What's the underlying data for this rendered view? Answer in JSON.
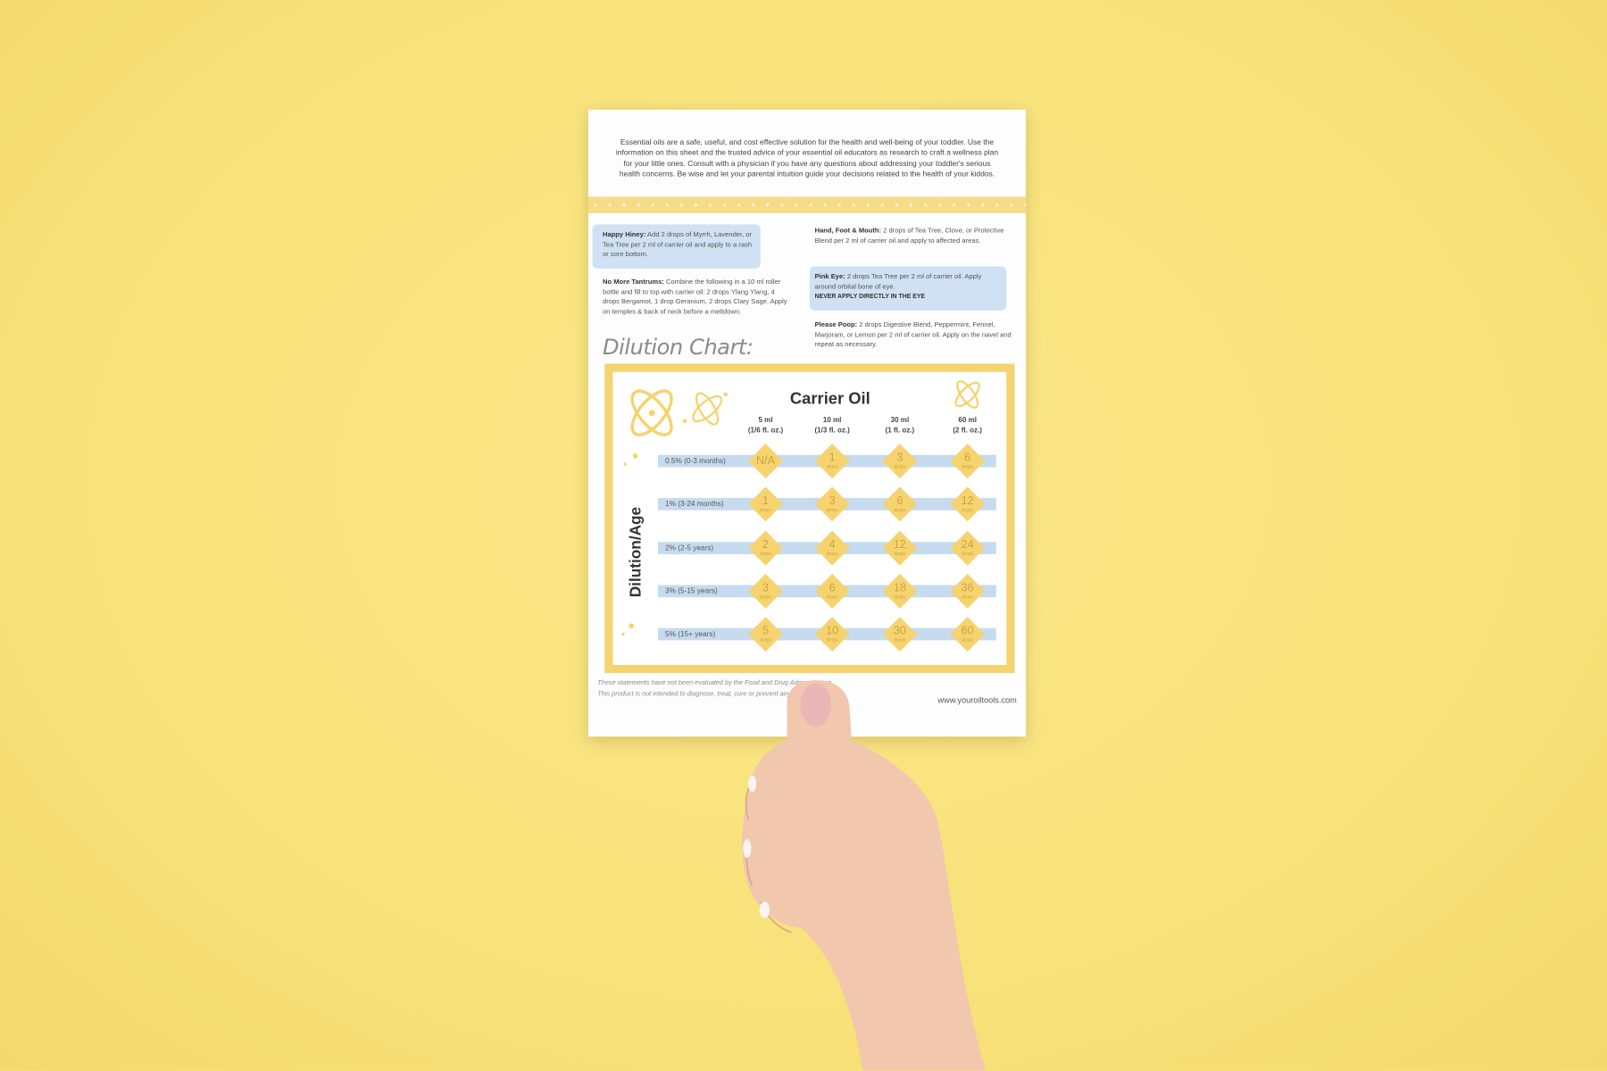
{
  "intro": "Essential oils are a safe, useful, and cost effective solution for the health and well-being of your toddler. Use the information on this sheet and the trusted advice of your essential oil educators as research to craft a wellness plan for your little ones. Consult with a physician if you have any questions about addressing your toddler's serious health concerns. Be wise and let your parental intuition guide your decisions related to the health of your kiddos.",
  "remedies": [
    {
      "name": "Happy Hiney:",
      "text": "Add 2 drops of Myrrh, Lavender, or Tea Tree per 2 ml of carrier oil and apply to a rash or sore bottom."
    },
    {
      "name": "No More Tantrums:",
      "text": "Combine the following in a 10 ml roller bottle and fill to top with carrier oil: 2 drops Ylang Ylang, 4 drops Bergamot, 1 drop Geranium, 2 drops Clary Sage. Apply on temples & back of neck before a meltdown."
    },
    {
      "name": "Hand, Foot & Mouth:",
      "text": "2 drops of Tea Tree, Clove, or Protective Blend per 2 ml of carrier oil and apply to affected areas."
    },
    {
      "name": "Pink Eye:",
      "text": "2 drops Tea Tree per 2 ml of carrier oil. Apply around orbital bone of eye.",
      "warning": "NEVER APPLY DIRECTLY IN THE EYE"
    },
    {
      "name": "Please Poop:",
      "text": "2 drops Digestive Blend, Peppermint, Fennel, Marjoram, or Lemon per 2 ml of carrier oil. Apply on the navel and repeat as necessary."
    }
  ],
  "dilution": {
    "title": "Dilution Chart:",
    "column_heading": "Carrier Oil",
    "row_heading": "Dilution/Age",
    "unit": "drops",
    "columns": [
      {
        "volume": "5 ml",
        "conversion": "(1/6 fl. oz.)"
      },
      {
        "volume": "10 ml",
        "conversion": "(1/3 fl. oz.)"
      },
      {
        "volume": "30 ml",
        "conversion": "(1 fl. oz.)"
      },
      {
        "volume": "60 ml",
        "conversion": "(2 fl. oz.)"
      }
    ],
    "rows": [
      {
        "label": "0.5% (0-3 months)",
        "cells": [
          "N/A",
          1,
          3,
          6
        ]
      },
      {
        "label": "1% (3-24 months)",
        "cells": [
          1,
          3,
          6,
          12
        ]
      },
      {
        "label": "2% (2-5 years)",
        "cells": [
          2,
          4,
          12,
          24
        ]
      },
      {
        "label": "3% (5-15 years)",
        "cells": [
          3,
          6,
          18,
          36
        ]
      },
      {
        "label": "5% (15+ years)",
        "cells": [
          5,
          10,
          30,
          60
        ]
      }
    ]
  },
  "disclaimer": [
    "These statements have not been evaluated by the Food and Drug Administration.",
    "This product is not intended to diagnose, treat, cure or prevent any disease."
  ],
  "website": "www.youroiltools.com"
}
